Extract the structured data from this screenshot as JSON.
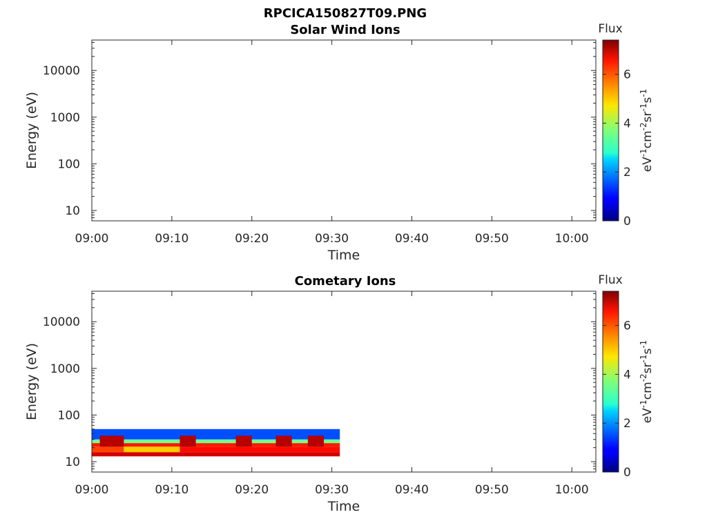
{
  "figure": {
    "title": "RPCICA150827T09.PNG"
  },
  "chart_data": [
    {
      "type": "heatmap",
      "title": "Solar Wind Ions",
      "xlabel": "Time",
      "ylabel": "Energy (eV)",
      "x_ticks": [
        "09:00",
        "09:10",
        "09:20",
        "09:30",
        "09:40",
        "09:50",
        "10:00"
      ],
      "y_ticks": [
        "10",
        "100",
        "1000",
        "10000"
      ],
      "y_scale": "log",
      "xlim": [
        "09:00",
        "10:03"
      ],
      "ylim": [
        6,
        45000
      ],
      "colorbar": {
        "title": "Flux",
        "label": "eV-1cm-2sr-1s-1",
        "ticks": [
          "0",
          "2",
          "4",
          "6"
        ],
        "range": [
          0,
          7.4
        ],
        "colormap": "jet"
      },
      "cells": []
    },
    {
      "type": "heatmap",
      "title": "Cometary Ions",
      "xlabel": "Time",
      "ylabel": "Energy (eV)",
      "x_ticks": [
        "09:00",
        "09:10",
        "09:20",
        "09:30",
        "09:40",
        "09:50",
        "10:00"
      ],
      "y_ticks": [
        "10",
        "100",
        "1000",
        "10000"
      ],
      "y_scale": "log",
      "xlim": [
        "09:00",
        "10:03"
      ],
      "ylim": [
        6,
        45000
      ],
      "colorbar": {
        "title": "Flux",
        "label": "eV-1cm-2sr-1s-1",
        "ticks": [
          "0",
          "2",
          "4",
          "6"
        ],
        "range": [
          0,
          7.4
        ],
        "colormap": "jet"
      },
      "data_extent": {
        "t_start": "09:00",
        "t_end": "09:31",
        "e_min": 13,
        "e_max": 50
      },
      "cells": [
        {
          "t": [
            "09:00",
            "09:31"
          ],
          "e": [
            13,
            16
          ],
          "flux": 6.8
        },
        {
          "t": [
            "09:00",
            "09:04"
          ],
          "e": [
            16,
            21
          ],
          "flux": 6.0
        },
        {
          "t": [
            "09:04",
            "09:11"
          ],
          "e": [
            16,
            21
          ],
          "flux": 5.0
        },
        {
          "t": [
            "09:11",
            "09:31"
          ],
          "e": [
            16,
            21
          ],
          "flux": 6.4
        },
        {
          "t": [
            "09:00",
            "09:31"
          ],
          "e": [
            21,
            25
          ],
          "flux": 6.3
        },
        {
          "t": [
            "09:00",
            "09:31"
          ],
          "e": [
            25,
            30
          ],
          "flux": 3.6
        },
        {
          "t": [
            "09:00",
            "09:31"
          ],
          "e": [
            30,
            50
          ],
          "flux": 1.5
        },
        {
          "t": [
            "09:01",
            "09:04"
          ],
          "e": [
            21,
            36
          ],
          "flux": 7.0
        },
        {
          "t": [
            "09:11",
            "09:13"
          ],
          "e": [
            21,
            36
          ],
          "flux": 7.0
        },
        {
          "t": [
            "09:18",
            "09:20"
          ],
          "e": [
            21,
            36
          ],
          "flux": 7.0
        },
        {
          "t": [
            "09:23",
            "09:25"
          ],
          "e": [
            21,
            36
          ],
          "flux": 7.0
        },
        {
          "t": [
            "09:27",
            "09:29"
          ],
          "e": [
            21,
            36
          ],
          "flux": 7.0
        }
      ]
    }
  ]
}
